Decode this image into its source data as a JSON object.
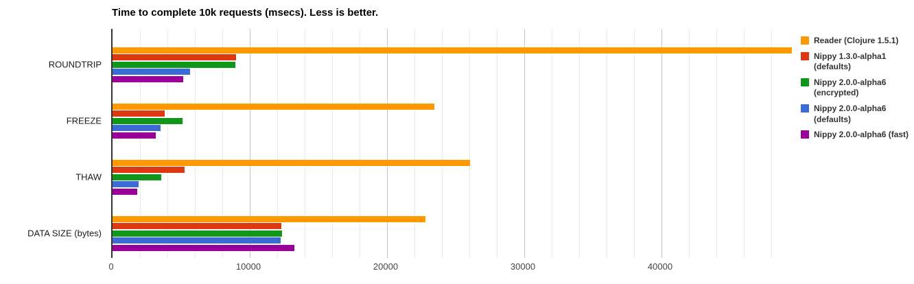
{
  "title": "Time to complete 10k requests (msecs). Less is better.",
  "chart_data": {
    "type": "bar",
    "orientation": "horizontal",
    "title": "Time to complete 10k requests (msecs). Less is better.",
    "categories": [
      "ROUNDTRIP",
      "FREEZE",
      "THAW",
      "DATA SIZE (bytes)"
    ],
    "series": [
      {
        "name": "Reader (Clojure 1.5.1)",
        "color": "#FF9900",
        "values": [
          49500,
          23450,
          26050,
          22800
        ]
      },
      {
        "name": "Nippy 1.3.0-alpha1 (defaults)",
        "color": "#DC3912",
        "values": [
          9000,
          3800,
          5250,
          12300
        ]
      },
      {
        "name": "Nippy 2.0.0-alpha6 (encrypted)",
        "color": "#109618",
        "values": [
          8950,
          5100,
          3550,
          12350
        ]
      },
      {
        "name": "Nippy 2.0.0-alpha6 (defaults)",
        "color": "#3B6CD4",
        "values": [
          5650,
          3500,
          1900,
          12250
        ]
      },
      {
        "name": "Nippy 2.0.0-alpha6 (fast)",
        "color": "#990099",
        "values": [
          5150,
          3150,
          1800,
          13250
        ]
      }
    ],
    "x_axis": {
      "ticks": [
        0,
        10000,
        20000,
        30000,
        40000
      ],
      "max": 50000,
      "minor_step": 2000,
      "major_step": 10000
    },
    "xlabel": "",
    "ylabel": "",
    "legend_position": "right",
    "grid": true
  }
}
